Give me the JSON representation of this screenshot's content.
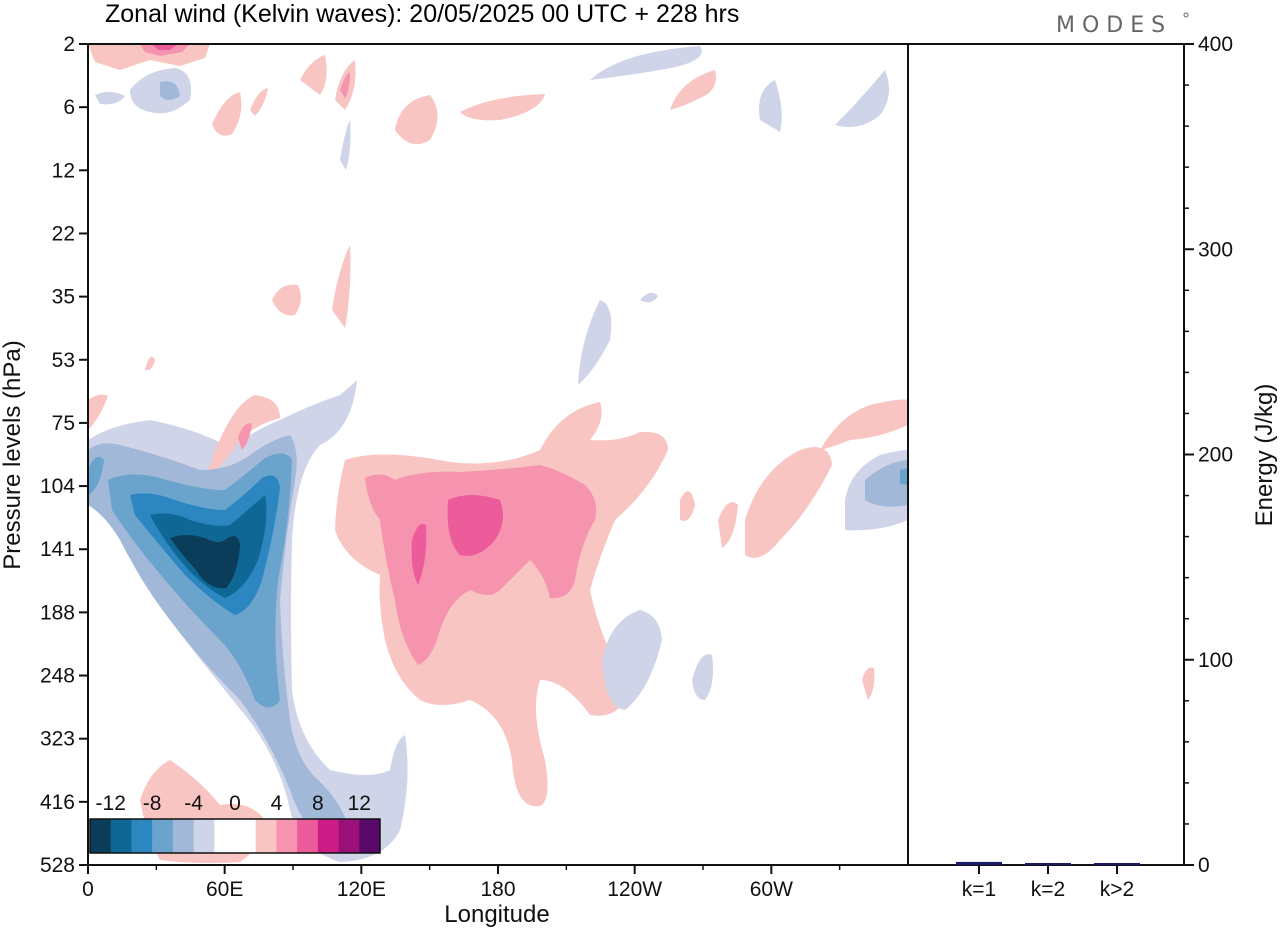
{
  "chart_data": [
    {
      "type": "heatmap",
      "title": "Zonal wind (Kelvin waves):  20/05/2025  00 UTC  + 228 hrs",
      "brand": "MODES",
      "xlabel": "Longitude",
      "ylabel": "Pressure levels (hPa)",
      "x_ticks": [
        "0",
        "60E",
        "120E",
        "180",
        "120W",
        "60W"
      ],
      "x_tick_values": [
        0,
        60,
        120,
        180,
        240,
        300
      ],
      "x_range": [
        0,
        360
      ],
      "y_ticks": [
        "2",
        "6",
        "12",
        "22",
        "35",
        "53",
        "75",
        "104",
        "141",
        "188",
        "248",
        "323",
        "416",
        "528"
      ],
      "colorbar": {
        "labels": [
          "-12",
          "-8",
          "-4",
          "0",
          "4",
          "8",
          "12"
        ],
        "colors": [
          "#0b3d5a",
          "#0f6795",
          "#2c87c0",
          "#6aa3cc",
          "#a1b8d8",
          "#d0d4e8",
          "#ffffff",
          "#ffffff",
          "#f8c5c3",
          "#f694b0",
          "#ec5c9a",
          "#cc1c86",
          "#9a1279",
          "#5a076a"
        ]
      },
      "regions": [
        {
          "sign": "negative",
          "peak": -14,
          "lon_range": [
            40,
            65
          ],
          "level": "141 hPa"
        },
        {
          "sign": "negative",
          "peak": -8,
          "lon_range": [
            0,
            10
          ],
          "level": "104 hPa"
        },
        {
          "sign": "positive",
          "peak": 8,
          "lon_range": [
            160,
            180
          ],
          "level": "141 hPa"
        },
        {
          "sign": "positive",
          "peak": 8,
          "lon_range": [
            30,
            45
          ],
          "level": "2 hPa"
        },
        {
          "sign": "negative",
          "peak": -6,
          "lon_range": [
            345,
            360
          ],
          "level": "104 hPa"
        }
      ]
    },
    {
      "type": "bar",
      "categories": [
        "k=1",
        "k=2",
        "k>2"
      ],
      "values": [
        1.5,
        0.5,
        0.3
      ],
      "ylabel": "Energy (J/kg)",
      "ylim": [
        0,
        400
      ],
      "y_ticks": [
        "0",
        "100",
        "200",
        "300",
        "400"
      ],
      "bar_color": "#1a1a6e"
    }
  ]
}
